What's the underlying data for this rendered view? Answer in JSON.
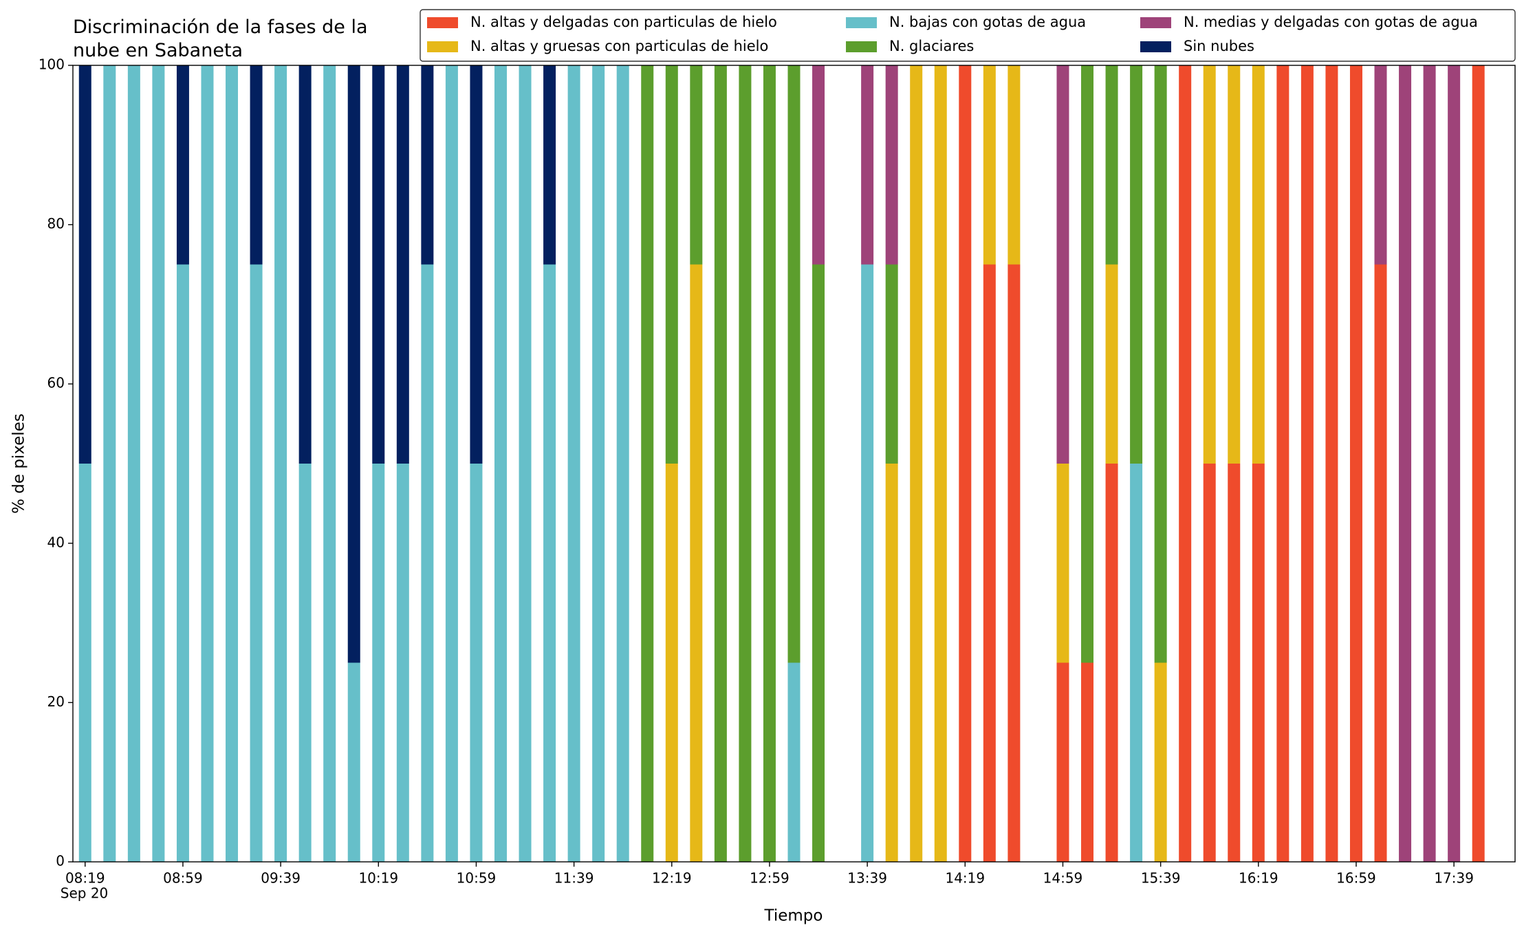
{
  "chart_data": {
    "type": "stacked-bar",
    "title": "Discriminación de la fases de la\nnube en Sabaneta",
    "xlabel": "Tiempo",
    "ylabel": "% de pixeles",
    "date": "Sep 20",
    "x": [
      "08:19",
      "08:29",
      "08:39",
      "08:49",
      "08:59",
      "09:09",
      "09:19",
      "09:29",
      "09:39",
      "09:49",
      "09:59",
      "10:09",
      "10:19",
      "10:29",
      "10:39",
      "10:49",
      "10:59",
      "11:09",
      "11:19",
      "11:29",
      "11:39",
      "11:49",
      "11:59",
      "12:09",
      "12:19",
      "12:29",
      "12:39",
      "12:49",
      "12:59",
      "13:09",
      "13:19",
      "13:29",
      "13:39",
      "13:49",
      "13:59",
      "14:09",
      "14:19",
      "14:29",
      "14:39",
      "14:49",
      "14:59",
      "15:09",
      "15:19",
      "15:29",
      "15:39",
      "15:49",
      "15:59",
      "16:09",
      "16:19",
      "16:29",
      "16:39",
      "16:49",
      "16:59",
      "17:09",
      "17:19",
      "17:29",
      "17:39",
      "17:49"
    ],
    "xlim": [
      "08:14",
      "18:04"
    ],
    "xticks": [
      "08:19",
      "08:59",
      "09:39",
      "10:19",
      "10:59",
      "11:39",
      "12:19",
      "12:59",
      "13:39",
      "14:19",
      "14:59",
      "15:39",
      "16:19",
      "16:59",
      "17:39"
    ],
    "ylim": [
      0,
      100
    ],
    "yticks": [
      0,
      20,
      40,
      60,
      80,
      100
    ],
    "series": [
      {
        "name": "N. altas y delgadas con particulas de hielo",
        "color": "#ef4b2c",
        "values": [
          0,
          0,
          0,
          0,
          0,
          0,
          0,
          0,
          0,
          0,
          0,
          0,
          0,
          0,
          0,
          0,
          0,
          0,
          0,
          0,
          0,
          0,
          0,
          0,
          0,
          0,
          0,
          0,
          0,
          0,
          0,
          null,
          0,
          0,
          0,
          0,
          100,
          75,
          75,
          null,
          25,
          25,
          50,
          0,
          0,
          100,
          50,
          50,
          50,
          100,
          100,
          100,
          100,
          75,
          0,
          0,
          0,
          100
        ]
      },
      {
        "name": "N. altas y gruesas con particulas de hielo",
        "color": "#e6b818",
        "values": [
          0,
          0,
          0,
          0,
          0,
          0,
          0,
          0,
          0,
          0,
          0,
          0,
          0,
          0,
          0,
          0,
          0,
          0,
          0,
          0,
          0,
          0,
          0,
          0,
          50,
          75,
          0,
          0,
          0,
          0,
          0,
          null,
          0,
          50,
          100,
          100,
          0,
          25,
          25,
          null,
          25,
          0,
          25,
          0,
          25,
          0,
          50,
          50,
          50,
          0,
          0,
          0,
          0,
          0,
          0,
          0,
          0,
          0
        ]
      },
      {
        "name": "N. bajas con gotas de agua",
        "color": "#66bfc9",
        "values": [
          50,
          100,
          100,
          100,
          75,
          100,
          100,
          75,
          100,
          50,
          100,
          25,
          50,
          50,
          75,
          100,
          50,
          100,
          100,
          75,
          100,
          100,
          100,
          0,
          0,
          0,
          0,
          0,
          0,
          25,
          0,
          null,
          75,
          0,
          0,
          0,
          0,
          0,
          0,
          null,
          0,
          0,
          0,
          50,
          0,
          0,
          0,
          0,
          0,
          0,
          0,
          0,
          0,
          0,
          0,
          0,
          0,
          0
        ]
      },
      {
        "name": "N. glaciares",
        "color": "#5c9e2d",
        "values": [
          0,
          0,
          0,
          0,
          0,
          0,
          0,
          0,
          0,
          0,
          0,
          0,
          0,
          0,
          0,
          0,
          0,
          0,
          0,
          0,
          0,
          0,
          0,
          100,
          50,
          25,
          100,
          100,
          100,
          75,
          75,
          null,
          0,
          25,
          0,
          0,
          0,
          0,
          0,
          null,
          0,
          75,
          25,
          50,
          75,
          0,
          0,
          0,
          0,
          0,
          0,
          0,
          0,
          0,
          0,
          0,
          0,
          0
        ]
      },
      {
        "name": "N. medias y delgadas con gotas de agua",
        "color": "#9e4379",
        "values": [
          0,
          0,
          0,
          0,
          0,
          0,
          0,
          0,
          0,
          0,
          0,
          0,
          0,
          0,
          0,
          0,
          0,
          0,
          0,
          0,
          0,
          0,
          0,
          0,
          0,
          0,
          0,
          0,
          0,
          0,
          25,
          null,
          25,
          25,
          0,
          0,
          0,
          0,
          0,
          null,
          50,
          0,
          0,
          0,
          0,
          0,
          0,
          0,
          0,
          0,
          0,
          0,
          0,
          25,
          100,
          100,
          100,
          0
        ]
      },
      {
        "name": "Sin nubes",
        "color": "#03205f",
        "values": [
          50,
          0,
          0,
          0,
          25,
          0,
          0,
          25,
          0,
          50,
          0,
          75,
          50,
          50,
          25,
          0,
          50,
          0,
          0,
          25,
          0,
          0,
          0,
          0,
          0,
          0,
          0,
          0,
          0,
          0,
          0,
          null,
          0,
          0,
          0,
          0,
          0,
          0,
          0,
          null,
          0,
          0,
          0,
          0,
          0,
          0,
          0,
          0,
          0,
          0,
          0,
          0,
          0,
          0,
          0,
          0,
          0,
          0
        ]
      }
    ]
  }
}
